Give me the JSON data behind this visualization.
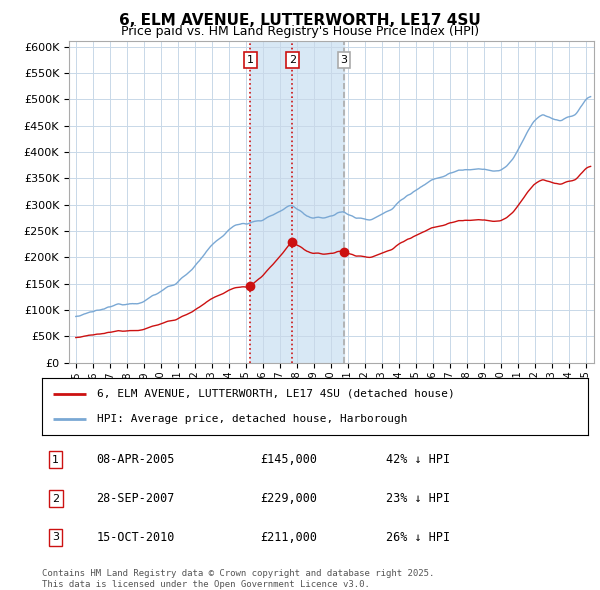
{
  "title": "6, ELM AVENUE, LUTTERWORTH, LE17 4SU",
  "subtitle": "Price paid vs. HM Land Registry's House Price Index (HPI)",
  "yticks": [
    0,
    50000,
    100000,
    150000,
    200000,
    250000,
    300000,
    350000,
    400000,
    450000,
    500000,
    550000,
    600000
  ],
  "ytick_labels": [
    "£0",
    "£50K",
    "£100K",
    "£150K",
    "£200K",
    "£250K",
    "£300K",
    "£350K",
    "£400K",
    "£450K",
    "£500K",
    "£550K",
    "£600K"
  ],
  "xlim_start": 1994.6,
  "xlim_end": 2025.5,
  "ylim_min": 0,
  "ylim_max": 610000,
  "hpi_color": "#7AA8D4",
  "price_color": "#CC1111",
  "vline_colors": [
    "#CC1111",
    "#CC1111",
    "#AAAAAA"
  ],
  "shade_color": "#D8E8F5",
  "transactions": [
    {
      "label": "1",
      "year": 2005.27,
      "price": 145000
    },
    {
      "label": "2",
      "year": 2007.75,
      "price": 229000
    },
    {
      "label": "3",
      "year": 2010.79,
      "price": 211000
    }
  ],
  "legend_entries": [
    {
      "label": "6, ELM AVENUE, LUTTERWORTH, LE17 4SU (detached house)",
      "color": "#CC1111"
    },
    {
      "label": "HPI: Average price, detached house, Harborough",
      "color": "#7AA8D4"
    }
  ],
  "table_rows": [
    {
      "num": "1",
      "date": "08-APR-2005",
      "price": "£145,000",
      "pct": "42% ↓ HPI"
    },
    {
      "num": "2",
      "date": "28-SEP-2007",
      "price": "£229,000",
      "pct": "23% ↓ HPI"
    },
    {
      "num": "3",
      "date": "15-OCT-2010",
      "price": "£211,000",
      "pct": "26% ↓ HPI"
    }
  ],
  "footer": "Contains HM Land Registry data © Crown copyright and database right 2025.\nThis data is licensed under the Open Government Licence v3.0.",
  "background_color": "#FFFFFF",
  "grid_color": "#C8D8E8"
}
